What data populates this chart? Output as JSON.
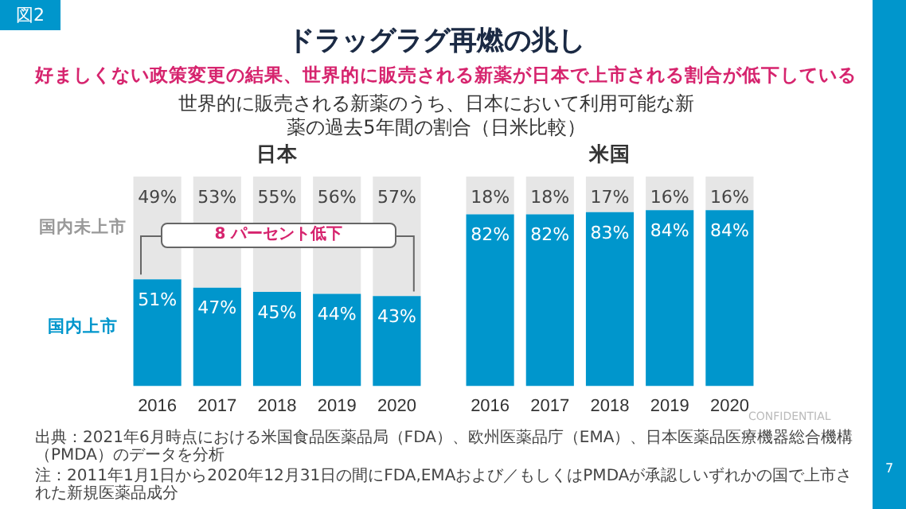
{
  "chart_data": [
    {
      "type": "bar",
      "title": "日本",
      "stacked": true,
      "categories": [
        "2016",
        "2017",
        "2018",
        "2019",
        "2020"
      ],
      "ylim": [
        0,
        100
      ],
      "tick_labels": "x",
      "data_labels": true,
      "grid": false,
      "legend": false,
      "series": [
        {
          "name": "国内上市",
          "color": "#0096cc",
          "values": [
            51,
            47,
            45,
            44,
            43
          ],
          "value_labels": [
            "51%",
            "47%",
            "45%",
            "44%",
            "43%"
          ]
        },
        {
          "name": "国内未上市",
          "color": "#e6e6e6",
          "values": [
            49,
            53,
            55,
            56,
            57
          ],
          "value_labels": [
            "49%",
            "53%",
            "55%",
            "56%",
            "57%"
          ]
        }
      ],
      "annotations": [
        "図2",
        "ドラッグラグ再燃の兆し",
        "好ましくない政策変更の結果、世界的に販売される新薬が日本で上市される割合が低下している",
        "世界的に販売される新薬のうち、日本において利用可能な新薬の過去5年間の割合（日米比較）",
        "8 パーセント低下",
        "出典：2021年6月時点における米国食品医薬品局（FDA）、欧州医薬品庁（EMA）、日本医薬品医療機器総合機構（PMDA）のデータを分析",
        "注：2011年1月1日から2020年12月31日の間にFDA,EMAおよび／もしくはPMDAが承認しいずれかの国で上市された新規医薬品成分",
        "CONFIDENTIAL",
        "7"
      ]
    },
    {
      "type": "bar",
      "title": "米国",
      "stacked": true,
      "categories": [
        "2016",
        "2017",
        "2018",
        "2019",
        "2020"
      ],
      "ylim": [
        0,
        100
      ],
      "tick_labels": "x",
      "data_labels": true,
      "grid": false,
      "legend": false,
      "series": [
        {
          "color": "#0096cc",
          "values": [
            82,
            82,
            83,
            84,
            84
          ],
          "value_labels": [
            "82%",
            "82%",
            "83%",
            "84%",
            "84%"
          ]
        },
        {
          "color": "#e6e6e6",
          "values": [
            18,
            18,
            17,
            16,
            16
          ],
          "value_labels": [
            "18%",
            "18%",
            "17%",
            "16%",
            "16%"
          ]
        }
      ]
    }
  ]
}
